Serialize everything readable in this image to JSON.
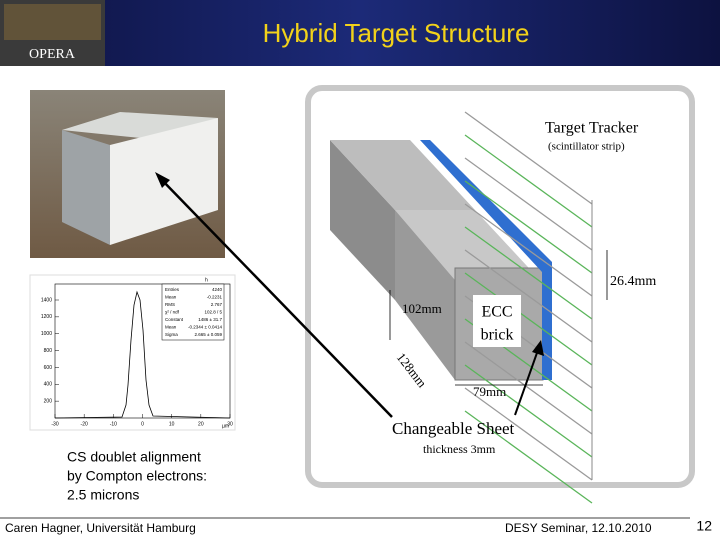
{
  "header": {
    "title": "Hybrid Target Structure",
    "logo": "OPERA"
  },
  "histogram": {
    "title": "h",
    "stats": [
      {
        "label": "Entries",
        "value": "4240"
      },
      {
        "label": "Mean",
        "value": "-0.2231"
      },
      {
        "label": "RMS",
        "value": "2.767"
      },
      {
        "label": "χ² / ndf",
        "value": "102.8 / 5"
      },
      {
        "label": "Constant",
        "value": "1486 ± 31.7"
      },
      {
        "label": "Mean",
        "value": "-0.2344 ± 0.0414"
      },
      {
        "label": "Sigma",
        "value": "2.665 ± 0.059"
      }
    ],
    "yticks": [
      200,
      400,
      600,
      800,
      1000,
      1200,
      1400
    ],
    "xticks": [
      -30,
      -20,
      -10,
      0,
      10,
      20,
      30
    ],
    "x_unit": "µm"
  },
  "caption": [
    "CS doublet alignment",
    "by Compton electrons:",
    "2.5 microns"
  ],
  "diagram": {
    "tracker": "Target Tracker",
    "tracker_note": "(scintillator strip)",
    "gap": "26.4mm",
    "height": "102mm",
    "brick_line1": "ECC",
    "brick_line2": "brick",
    "depth": "128mm",
    "width": "79mm",
    "sheet": "Changeable Sheet",
    "sheet_note": "thickness 3mm"
  },
  "footer": {
    "author": "Caren Hagner, Universität Hamburg",
    "event": "DESY Seminar, 12.10.2010",
    "page": "12"
  }
}
